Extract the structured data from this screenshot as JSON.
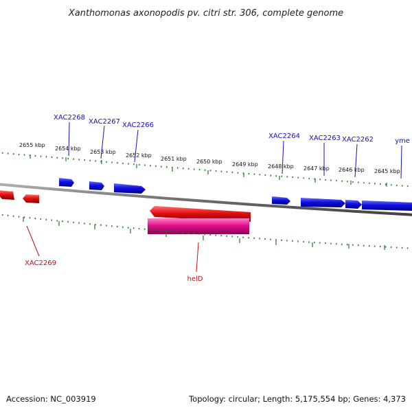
{
  "title": "Xanthomonas axonopodis pv. citri str. 306, complete genome",
  "footer": {
    "accession": "Accession: NC_003919",
    "summary": "Topology: circular; Length: 5,175,554 bp; Genes: 4,373"
  },
  "colors": {
    "forward_gene": "#1010e0",
    "reverse_gene": "#e01010",
    "rna_gene": "#e0108a",
    "backbone": "#808080",
    "tick": "#1f7a1f",
    "forward_label": "#1010c0",
    "reverse_label": "#c01010"
  },
  "scale_labels": [
    "2655 kbp",
    "2654 kbp",
    "2653 kbp",
    "2652 kbp",
    "2651 kbp",
    "2650 kbp",
    "2649 kbp",
    "2648 kbp",
    "2647 kbp",
    "2646 kbp",
    "2645 kbp"
  ],
  "gene_labels": {
    "xac2268": "XAC2268",
    "xac2267": "XAC2267",
    "xac2266": "XAC2266",
    "xac2264": "XAC2264",
    "xac2263": "XAC2263",
    "xac2262": "XAC2262",
    "yme": "yme",
    "xac2269": "XAC2269",
    "held": "helD"
  }
}
